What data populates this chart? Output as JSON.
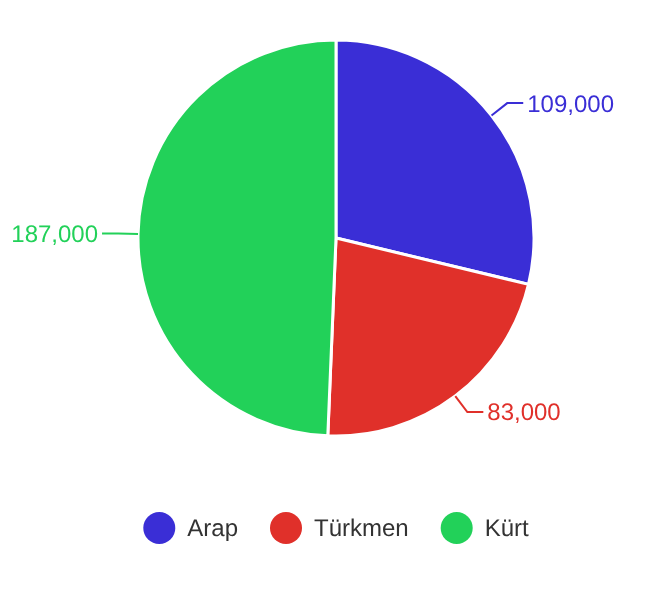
{
  "chart_data": {
    "type": "pie",
    "categories": [
      "Arap",
      "Türkmen",
      "Kürt"
    ],
    "values": [
      109000,
      83000,
      187000
    ],
    "colors": [
      "#3a2ed6",
      "#e0302a",
      "#22d159"
    ],
    "legend": "bottom",
    "value_labels": [
      "109,000",
      "83,000",
      "187,000"
    ]
  }
}
